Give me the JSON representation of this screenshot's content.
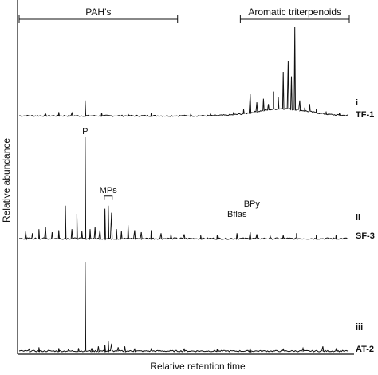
{
  "chart_data": {
    "type": "line",
    "title": "",
    "xlabel": "Relative retention time",
    "ylabel": "Relative abundance",
    "x_range": [
      0,
      100
    ],
    "grid": false,
    "region_brackets": [
      {
        "label": "PAH’s",
        "x_start": 0,
        "x_end": 48
      },
      {
        "label": "Aromatic triterpenoids",
        "x_start": 67,
        "x_end": 100
      }
    ],
    "panels": [
      {
        "numeral": "i",
        "name": "TF-1",
        "peaks": [
          {
            "x": 8,
            "y": 3
          },
          {
            "x": 12,
            "y": 5
          },
          {
            "x": 16,
            "y": 4
          },
          {
            "x": 20,
            "y": 18
          },
          {
            "x": 25,
            "y": 4
          },
          {
            "x": 33,
            "y": 3
          },
          {
            "x": 40,
            "y": 4
          },
          {
            "x": 52,
            "y": 3
          },
          {
            "x": 58,
            "y": 3
          },
          {
            "x": 65,
            "y": 5
          },
          {
            "x": 68,
            "y": 8
          },
          {
            "x": 70,
            "y": 25
          },
          {
            "x": 72,
            "y": 16
          },
          {
            "x": 74,
            "y": 20
          },
          {
            "x": 75.5,
            "y": 14
          },
          {
            "x": 77,
            "y": 28
          },
          {
            "x": 78.5,
            "y": 22
          },
          {
            "x": 80,
            "y": 50
          },
          {
            "x": 81.5,
            "y": 62
          },
          {
            "x": 82.5,
            "y": 45
          },
          {
            "x": 83.5,
            "y": 100
          },
          {
            "x": 85,
            "y": 18
          },
          {
            "x": 86.5,
            "y": 10
          },
          {
            "x": 88,
            "y": 14
          },
          {
            "x": 90,
            "y": 8
          },
          {
            "x": 93,
            "y": 5
          },
          {
            "x": 97,
            "y": 4
          }
        ],
        "hump": {
          "center": 80,
          "width": 11,
          "height": 8
        },
        "annotations": []
      },
      {
        "numeral": "ii",
        "name": "SF-3",
        "peaks": [
          {
            "x": 2,
            "y": 8
          },
          {
            "x": 4,
            "y": 6
          },
          {
            "x": 6,
            "y": 10
          },
          {
            "x": 8,
            "y": 12
          },
          {
            "x": 10,
            "y": 7
          },
          {
            "x": 12,
            "y": 9
          },
          {
            "x": 14,
            "y": 33
          },
          {
            "x": 16,
            "y": 10
          },
          {
            "x": 17.5,
            "y": 25
          },
          {
            "x": 19,
            "y": 8
          },
          {
            "x": 20,
            "y": 100
          },
          {
            "x": 21.5,
            "y": 10
          },
          {
            "x": 23,
            "y": 12
          },
          {
            "x": 24.5,
            "y": 9
          },
          {
            "x": 26,
            "y": 30
          },
          {
            "x": 27,
            "y": 33
          },
          {
            "x": 28,
            "y": 26
          },
          {
            "x": 29.5,
            "y": 10
          },
          {
            "x": 31,
            "y": 8
          },
          {
            "x": 33,
            "y": 14
          },
          {
            "x": 35,
            "y": 9
          },
          {
            "x": 37,
            "y": 7
          },
          {
            "x": 40,
            "y": 9
          },
          {
            "x": 43,
            "y": 6
          },
          {
            "x": 46,
            "y": 5
          },
          {
            "x": 50,
            "y": 5
          },
          {
            "x": 55,
            "y": 4
          },
          {
            "x": 60,
            "y": 4
          },
          {
            "x": 66,
            "y": 6
          },
          {
            "x": 70,
            "y": 7
          },
          {
            "x": 72,
            "y": 5
          },
          {
            "x": 76,
            "y": 4
          },
          {
            "x": 80,
            "y": 4
          },
          {
            "x": 84,
            "y": 6
          },
          {
            "x": 90,
            "y": 4
          },
          {
            "x": 96,
            "y": 4
          }
        ],
        "annotations": [
          {
            "label": "P",
            "x": 20
          },
          {
            "label": "MPs",
            "x": 27
          },
          {
            "label": "Bflas",
            "x": 66
          },
          {
            "label": "BPy",
            "x": 70
          }
        ]
      },
      {
        "numeral": "iii",
        "name": "AT-2",
        "peaks": [
          {
            "x": 3,
            "y": 3
          },
          {
            "x": 6,
            "y": 5
          },
          {
            "x": 9,
            "y": 2
          },
          {
            "x": 12,
            "y": 4
          },
          {
            "x": 15,
            "y": 3
          },
          {
            "x": 18,
            "y": 4
          },
          {
            "x": 20,
            "y": 100
          },
          {
            "x": 22,
            "y": 4
          },
          {
            "x": 24,
            "y": 6
          },
          {
            "x": 26,
            "y": 8
          },
          {
            "x": 27,
            "y": 12
          },
          {
            "x": 28,
            "y": 9
          },
          {
            "x": 30,
            "y": 5
          },
          {
            "x": 32,
            "y": 6
          },
          {
            "x": 35,
            "y": 3
          },
          {
            "x": 40,
            "y": 3
          },
          {
            "x": 50,
            "y": 3
          },
          {
            "x": 60,
            "y": 3
          },
          {
            "x": 70,
            "y": 3
          },
          {
            "x": 80,
            "y": 3
          },
          {
            "x": 86,
            "y": 4
          },
          {
            "x": 92,
            "y": 6
          },
          {
            "x": 96,
            "y": 3
          }
        ],
        "annotations": []
      }
    ]
  }
}
